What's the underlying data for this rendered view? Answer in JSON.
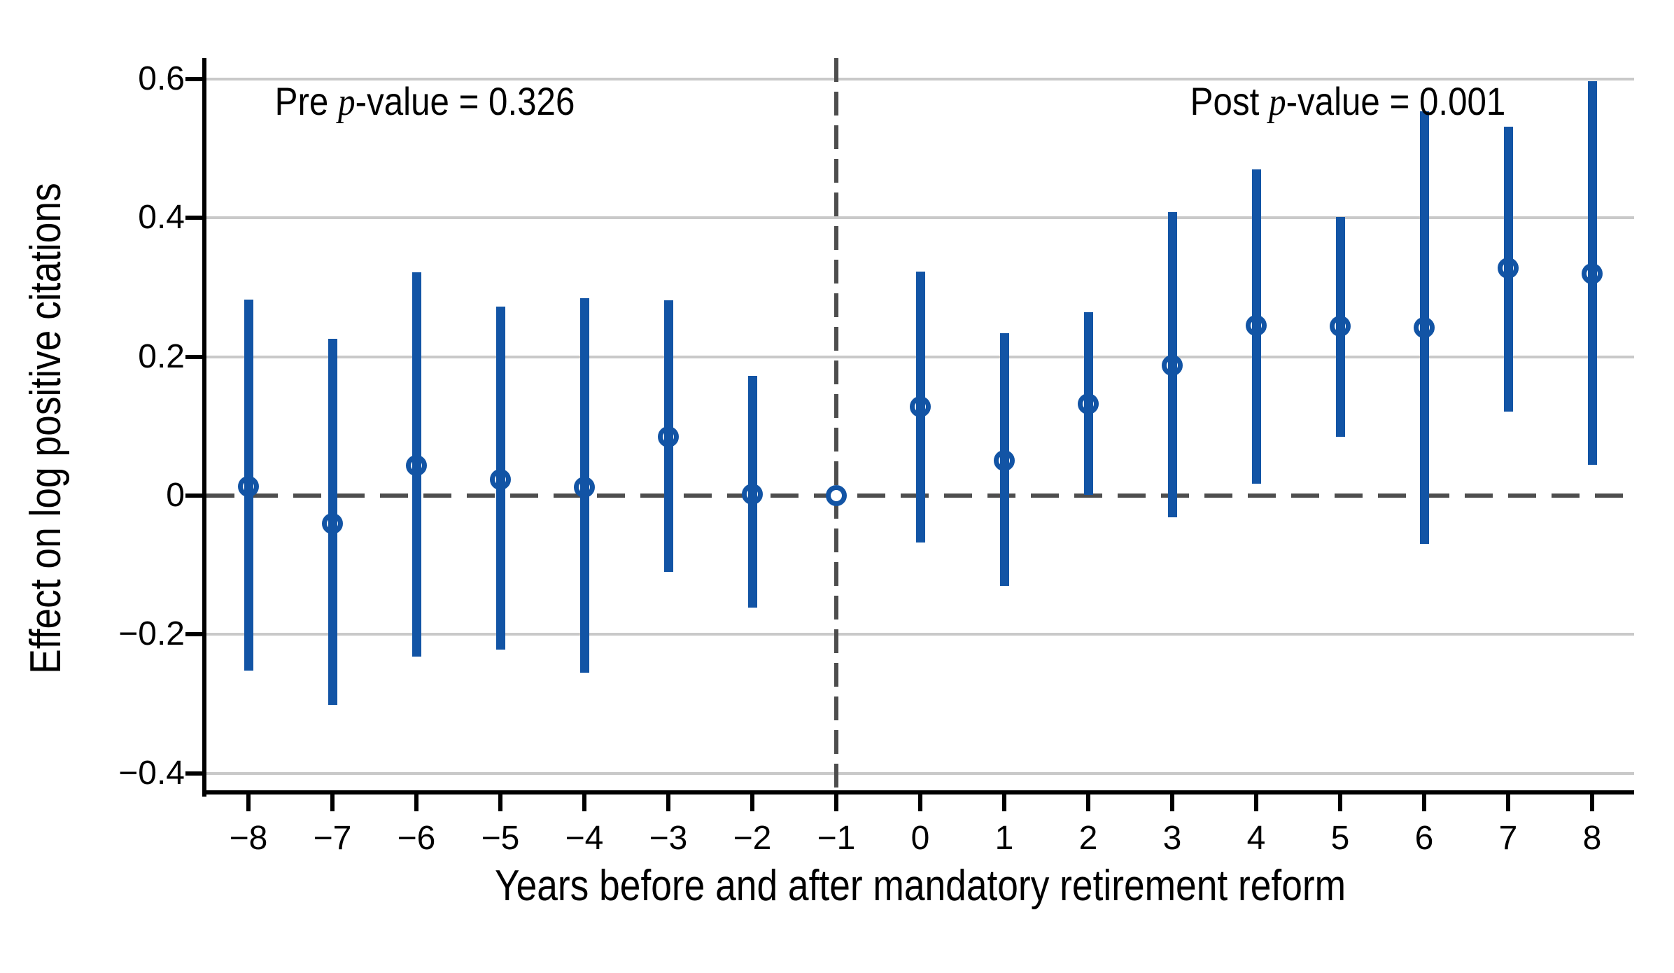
{
  "figure": {
    "ylabel": "Effect on log positive citations",
    "xlabel": "Years before and after mandatory retirement reform"
  },
  "annotations": {
    "pre": {
      "before_p": "Pre ",
      "p_char": "p",
      "after_p": "-value = 0.326"
    },
    "post": {
      "before_p": "Post ",
      "p_char": "p",
      "after_p": "-value = 0.001"
    }
  },
  "axes": {
    "y_ticks": [
      {
        "label": "0.6",
        "value": 0.6
      },
      {
        "label": "0.4",
        "value": 0.4
      },
      {
        "label": "0.2",
        "value": 0.2
      },
      {
        "label": "0",
        "value": 0
      },
      {
        "label": "−0.2",
        "value": -0.2
      },
      {
        "label": "−0.4",
        "value": -0.4
      }
    ],
    "x_ticks": [
      {
        "label": "−8",
        "value": -8
      },
      {
        "label": "−7",
        "value": -7
      },
      {
        "label": "−6",
        "value": -6
      },
      {
        "label": "−5",
        "value": -5
      },
      {
        "label": "−4",
        "value": -4
      },
      {
        "label": "−3",
        "value": -3
      },
      {
        "label": "−2",
        "value": -2
      },
      {
        "label": "−1",
        "value": -1
      },
      {
        "label": "0",
        "value": 0
      },
      {
        "label": "1",
        "value": 1
      },
      {
        "label": "2",
        "value": 2
      },
      {
        "label": "3",
        "value": 3
      },
      {
        "label": "4",
        "value": 4
      },
      {
        "label": "5",
        "value": 5
      },
      {
        "label": "6",
        "value": 6
      },
      {
        "label": "7",
        "value": 7
      },
      {
        "label": "8",
        "value": 8
      }
    ]
  },
  "colors": {
    "point_blue": "#1254a5",
    "grid_gray": "#c9c9c9",
    "dash_gray": "#4d4d4d",
    "axis_black": "#000000"
  },
  "chart_data": {
    "type": "scatter",
    "subtype": "event-study with 95% confidence intervals",
    "title": "",
    "xlabel": "Years before and after mandatory retirement reform",
    "ylabel": "Effect on log positive citations",
    "x": [
      -8,
      -7,
      -6,
      -5,
      -4,
      -3,
      -2,
      -1,
      0,
      1,
      2,
      3,
      4,
      5,
      6,
      7,
      8
    ],
    "estimates": [
      0.013,
      -0.04,
      0.043,
      0.023,
      0.012,
      0.085,
      0.002,
      0.0,
      0.128,
      0.05,
      0.132,
      0.188,
      0.245,
      0.244,
      0.242,
      0.328,
      0.32
    ],
    "ci_low": [
      -0.252,
      -0.301,
      -0.232,
      -0.222,
      -0.255,
      -0.11,
      -0.161,
      null,
      -0.068,
      -0.13,
      0.001,
      -0.031,
      0.017,
      0.085,
      -0.07,
      0.121,
      0.044
    ],
    "ci_high": [
      0.282,
      0.226,
      0.322,
      0.272,
      0.284,
      0.281,
      0.172,
      null,
      0.323,
      0.234,
      0.264,
      0.408,
      0.47,
      0.401,
      0.553,
      0.531,
      0.597
    ],
    "reference_x": -1,
    "zero_reference_line": 0,
    "y_gridlines": [
      0.6,
      0.4,
      0.2,
      -0.2,
      -0.4
    ],
    "ylim": [
      -0.43,
      0.63
    ],
    "xlim": [
      -8.5,
      8.5
    ],
    "grid": "horizontal gridlines only",
    "legend": null,
    "pre_p_value": "0.326",
    "post_p_value": "0.001",
    "annotations": [
      {
        "text": "Pre p-value = 0.326",
        "x": -5.9,
        "y": 0.567
      },
      {
        "text": "Post p-value = 0.001",
        "x": 5.1,
        "y": 0.567
      }
    ]
  }
}
